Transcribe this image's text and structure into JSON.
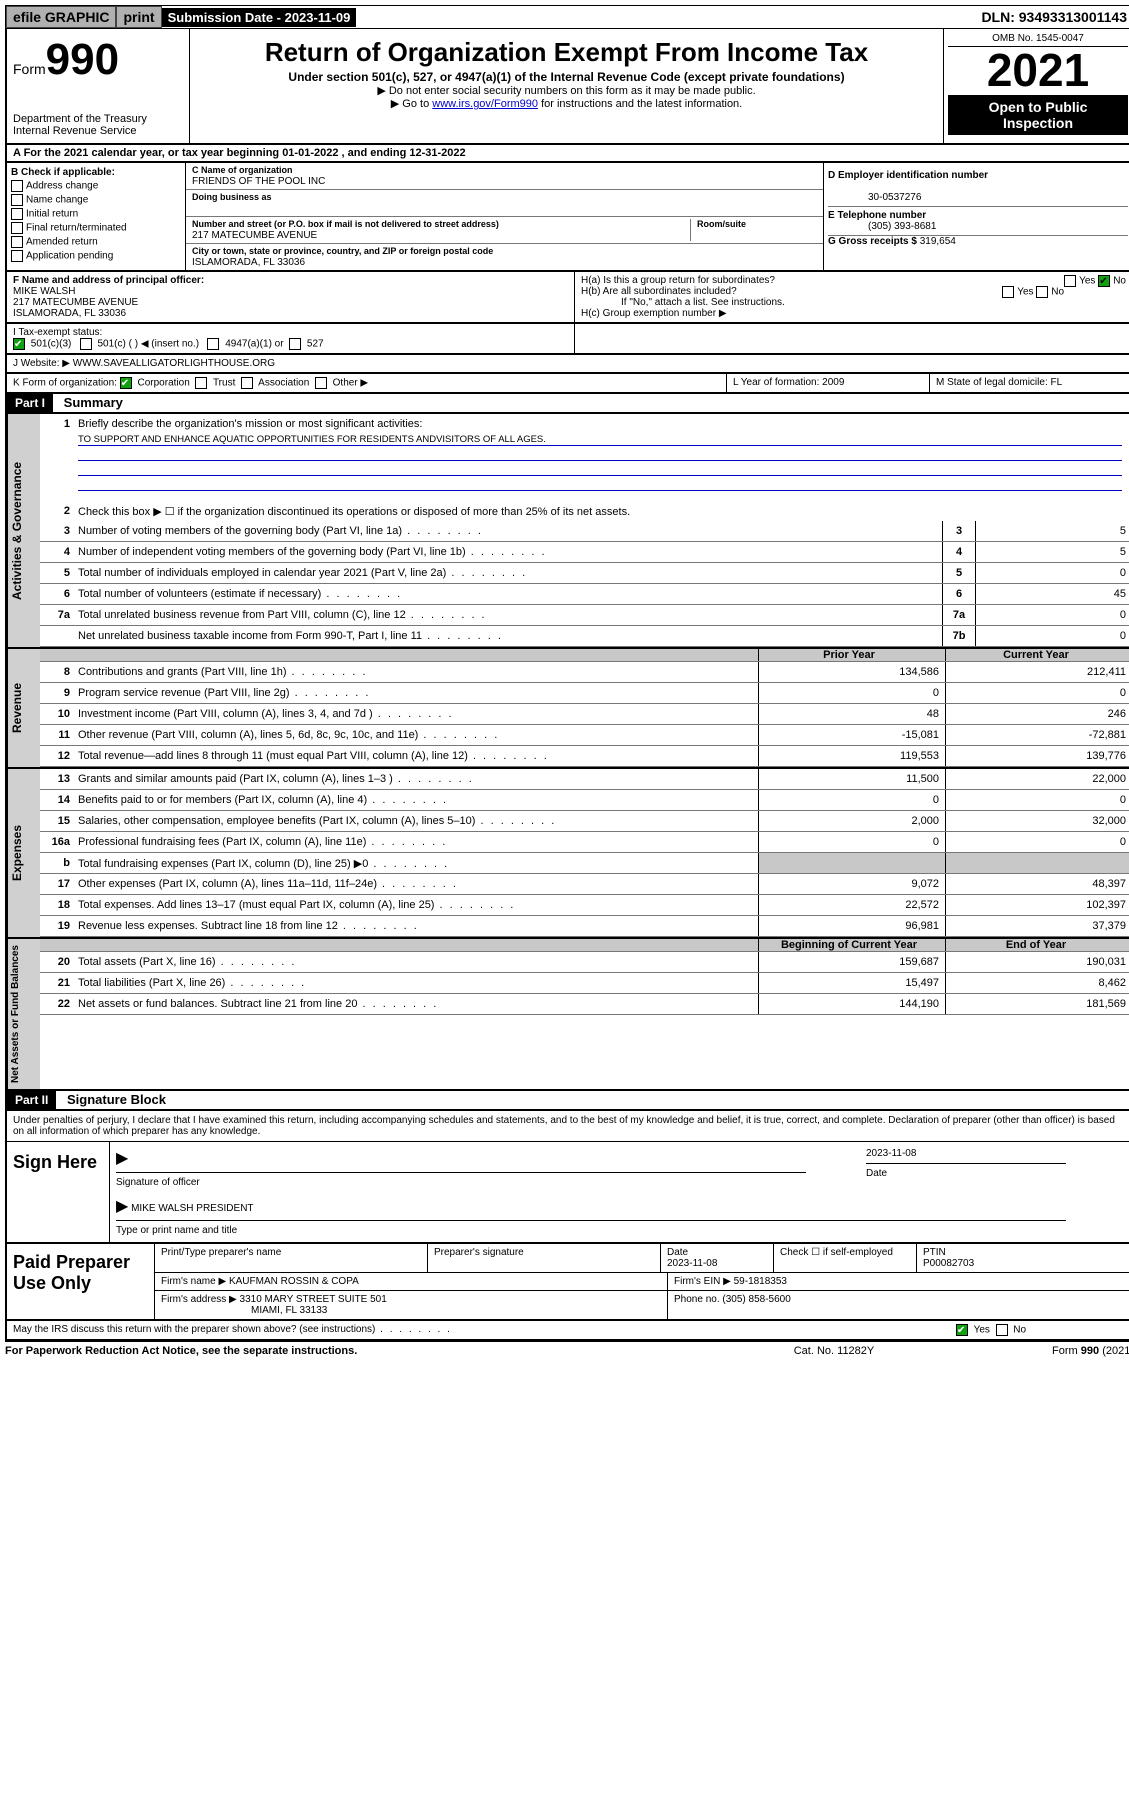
{
  "topbar": {
    "efile": "efile GRAPHIC",
    "print": "print",
    "sub_label": "Submission Date - 2023-11-09",
    "dln": "DLN: 93493313001143"
  },
  "header": {
    "form_label": "Form",
    "form_no": "990",
    "dept": "Department of the Treasury\nInternal Revenue Service",
    "title": "Return of Organization Exempt From Income Tax",
    "sub1": "Under section 501(c), 527, or 4947(a)(1) of the Internal Revenue Code (except private foundations)",
    "sub2": "▶ Do not enter social security numbers on this form as it may be made public.",
    "sub3_pre": "▶ Go to ",
    "sub3_link": "www.irs.gov/Form990",
    "sub3_post": " for instructions and the latest information.",
    "omb": "OMB No. 1545-0047",
    "year": "2021",
    "open": "Open to Public Inspection"
  },
  "row_a": "A For the 2021 calendar year, or tax year beginning 01-01-2022   , and ending 12-31-2022",
  "col_b": {
    "hdr": "B Check if applicable:",
    "opts": [
      "Address change",
      "Name change",
      "Initial return",
      "Final return/terminated",
      "Amended return",
      "Application pending"
    ]
  },
  "col_c": {
    "c_label": "C Name of organization",
    "org": "FRIENDS OF THE POOL INC",
    "dba_label": "Doing business as",
    "addr_label": "Number and street (or P.O. box if mail is not delivered to street address)",
    "room_label": "Room/suite",
    "addr": "217 MATECUMBE AVENUE",
    "city_label": "City or town, state or province, country, and ZIP or foreign postal code",
    "city": "ISLAMORADA, FL  33036"
  },
  "col_d": {
    "d_label": "D Employer identification number",
    "ein": "30-0537276",
    "e_label": "E Telephone number",
    "phone": "(305) 393-8681",
    "g_label": "G Gross receipts $",
    "gross": "319,654"
  },
  "row_f": {
    "f_label": "F  Name and address of principal officer:",
    "name": "MIKE WALSH",
    "addr1": "217 MATECUMBE AVENUE",
    "addr2": "ISLAMORADA, FL  33036",
    "ha": "H(a)  Is this a group return for subordinates?",
    "hb": "H(b)  Are all subordinates included?",
    "hb_note": "If \"No,\" attach a list. See instructions.",
    "hc": "H(c)  Group exemption number ▶",
    "yes": "Yes",
    "no": "No"
  },
  "row_i": {
    "label": "I   Tax-exempt status:",
    "o1": "501(c)(3)",
    "o2": "501(c) (   ) ◀ (insert no.)",
    "o3": "4947(a)(1) or",
    "o4": "527"
  },
  "row_j": {
    "label": "J   Website: ▶",
    "site": "WWW.SAVEALLIGATORLIGHTHOUSE.ORG"
  },
  "row_k": {
    "label": "K Form of organization:",
    "o1": "Corporation",
    "o2": "Trust",
    "o3": "Association",
    "o4": "Other ▶",
    "l_label": "L Year of formation: ",
    "l_val": "2009",
    "m_label": "M State of legal domicile: ",
    "m_val": "FL"
  },
  "part1": {
    "hdr": "Part I",
    "title": "Summary",
    "q1": "Briefly describe the organization's mission or most significant activities:",
    "mission": "TO SUPPORT AND ENHANCE AQUATIC OPPORTUNITIES FOR RESIDENTS ANDVISITORS OF ALL AGES.",
    "q2": "Check this box ▶ ☐  if the organization discontinued its operations or disposed of more than 25% of its net assets.",
    "side1": "Activities & Governance",
    "side2": "Revenue",
    "side3": "Expenses",
    "side4": "Net Assets or Fund Balances",
    "rows_gov": [
      {
        "n": "3",
        "t": "Number of voting members of the governing body (Part VI, line 1a)",
        "b": "3",
        "v": "5"
      },
      {
        "n": "4",
        "t": "Number of independent voting members of the governing body (Part VI, line 1b)",
        "b": "4",
        "v": "5"
      },
      {
        "n": "5",
        "t": "Total number of individuals employed in calendar year 2021 (Part V, line 2a)",
        "b": "5",
        "v": "0"
      },
      {
        "n": "6",
        "t": "Total number of volunteers (estimate if necessary)",
        "b": "6",
        "v": "45"
      },
      {
        "n": "7a",
        "t": "Total unrelated business revenue from Part VIII, column (C), line 12",
        "b": "7a",
        "v": "0"
      },
      {
        "n": "",
        "t": "Net unrelated business taxable income from Form 990-T, Part I, line 11",
        "b": "7b",
        "v": "0"
      }
    ],
    "hdr_prior": "Prior Year",
    "hdr_curr": "Current Year",
    "rows_rev": [
      {
        "n": "8",
        "t": "Contributions and grants (Part VIII, line 1h)",
        "p": "134,586",
        "c": "212,411"
      },
      {
        "n": "9",
        "t": "Program service revenue (Part VIII, line 2g)",
        "p": "0",
        "c": "0"
      },
      {
        "n": "10",
        "t": "Investment income (Part VIII, column (A), lines 3, 4, and 7d )",
        "p": "48",
        "c": "246"
      },
      {
        "n": "11",
        "t": "Other revenue (Part VIII, column (A), lines 5, 6d, 8c, 9c, 10c, and 11e)",
        "p": "-15,081",
        "c": "-72,881"
      },
      {
        "n": "12",
        "t": "Total revenue—add lines 8 through 11 (must equal Part VIII, column (A), line 12)",
        "p": "119,553",
        "c": "139,776"
      }
    ],
    "rows_exp": [
      {
        "n": "13",
        "t": "Grants and similar amounts paid (Part IX, column (A), lines 1–3 )",
        "p": "11,500",
        "c": "22,000"
      },
      {
        "n": "14",
        "t": "Benefits paid to or for members (Part IX, column (A), line 4)",
        "p": "0",
        "c": "0"
      },
      {
        "n": "15",
        "t": "Salaries, other compensation, employee benefits (Part IX, column (A), lines 5–10)",
        "p": "2,000",
        "c": "32,000"
      },
      {
        "n": "16a",
        "t": "Professional fundraising fees (Part IX, column (A), line 11e)",
        "p": "0",
        "c": "0"
      },
      {
        "n": "b",
        "t": "Total fundraising expenses (Part IX, column (D), line 25) ▶0",
        "p": "",
        "c": "",
        "shade": true
      },
      {
        "n": "17",
        "t": "Other expenses (Part IX, column (A), lines 11a–11d, 11f–24e)",
        "p": "9,072",
        "c": "48,397"
      },
      {
        "n": "18",
        "t": "Total expenses. Add lines 13–17 (must equal Part IX, column (A), line 25)",
        "p": "22,572",
        "c": "102,397"
      },
      {
        "n": "19",
        "t": "Revenue less expenses. Subtract line 18 from line 12",
        "p": "96,981",
        "c": "37,379"
      }
    ],
    "hdr_beg": "Beginning of Current Year",
    "hdr_end": "End of Year",
    "rows_net": [
      {
        "n": "20",
        "t": "Total assets (Part X, line 16)",
        "p": "159,687",
        "c": "190,031"
      },
      {
        "n": "21",
        "t": "Total liabilities (Part X, line 26)",
        "p": "15,497",
        "c": "8,462"
      },
      {
        "n": "22",
        "t": "Net assets or fund balances. Subtract line 21 from line 20",
        "p": "144,190",
        "c": "181,569"
      }
    ]
  },
  "part2": {
    "hdr": "Part II",
    "title": "Signature Block",
    "decl": "Under penalties of perjury, I declare that I have examined this return, including accompanying schedules and statements, and to the best of my knowledge and belief, it is true, correct, and complete. Declaration of preparer (other than officer) is based on all information of which preparer has any knowledge.",
    "sign_here": "Sign Here",
    "sig_of": "Signature of officer",
    "date_lbl": "Date",
    "date": "2023-11-08",
    "officer": "MIKE WALSH  PRESIDENT",
    "type_name": "Type or print name and title",
    "paid_lbl": "Paid Preparer Use Only",
    "prep_name_lbl": "Print/Type preparer's name",
    "prep_sig_lbl": "Preparer's signature",
    "prep_date_lbl": "Date",
    "prep_date": "2023-11-08",
    "check_if": "Check ☐ if self-employed",
    "ptin_lbl": "PTIN",
    "ptin": "P00082703",
    "firm_name_lbl": "Firm's name    ▶",
    "firm_name": "KAUFMAN ROSSIN & COPA",
    "firm_ein_lbl": "Firm's EIN ▶",
    "firm_ein": "59-1818353",
    "firm_addr_lbl": "Firm's address ▶",
    "firm_addr": "3310 MARY STREET SUITE 501",
    "firm_city": "MIAMI, FL  33133",
    "phone_lbl": "Phone no.",
    "phone": "(305) 858-5600",
    "may_irs": "May the IRS discuss this return with the preparer shown above? (see instructions)"
  },
  "footer": {
    "left": "For Paperwork Reduction Act Notice, see the separate instructions.",
    "mid": "Cat. No. 11282Y",
    "right": "Form 990 (2021)"
  }
}
